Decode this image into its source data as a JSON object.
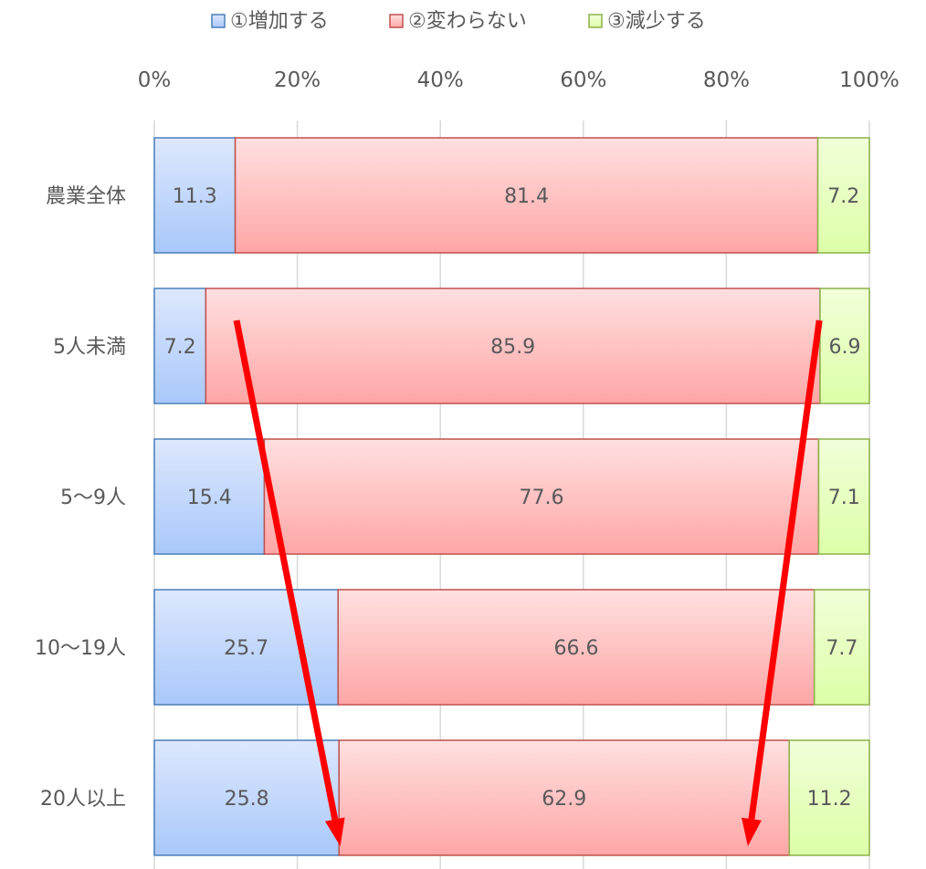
{
  "chart_data": {
    "type": "bar",
    "orientation": "horizontal",
    "stacked": "percent",
    "categories": [
      "農業全体",
      "5人未満",
      "5～9人",
      "10～19人",
      "20人以上"
    ],
    "series": [
      {
        "name": "①増加する",
        "values": [
          11.3,
          7.2,
          15.4,
          25.7,
          25.8
        ],
        "color": "#a9c8fa",
        "color_light": "#dde8fd",
        "border": "#4a7ebb"
      },
      {
        "name": "②変わらない",
        "values": [
          81.4,
          85.9,
          77.6,
          66.6,
          62.9
        ],
        "color": "#ffa6a6",
        "color_light": "#ffe0e0",
        "border": "#c0504d"
      },
      {
        "name": "③減少する",
        "values": [
          7.2,
          6.9,
          7.1,
          7.7,
          11.2
        ],
        "color": "#ddffa8",
        "color_light": "#f1ffd9",
        "border": "#8db04a"
      }
    ],
    "xaxis": {
      "ticks": [
        "0%",
        "20%",
        "40%",
        "60%",
        "80%",
        "100%"
      ],
      "range": [
        0,
        100
      ],
      "position": "top"
    },
    "grid": true,
    "legend": "top",
    "title": "",
    "annotations": [
      {
        "type": "arrow",
        "color": "#ff0000",
        "from": {
          "category": "5人未満",
          "percent": 11.5
        },
        "to": {
          "category": "20人以上",
          "percent": 26.0
        }
      },
      {
        "type": "arrow",
        "color": "#ff0000",
        "from": {
          "category": "5人未満",
          "percent": 93.0
        },
        "to": {
          "category": "20人以上",
          "percent": 83.0
        }
      }
    ]
  }
}
